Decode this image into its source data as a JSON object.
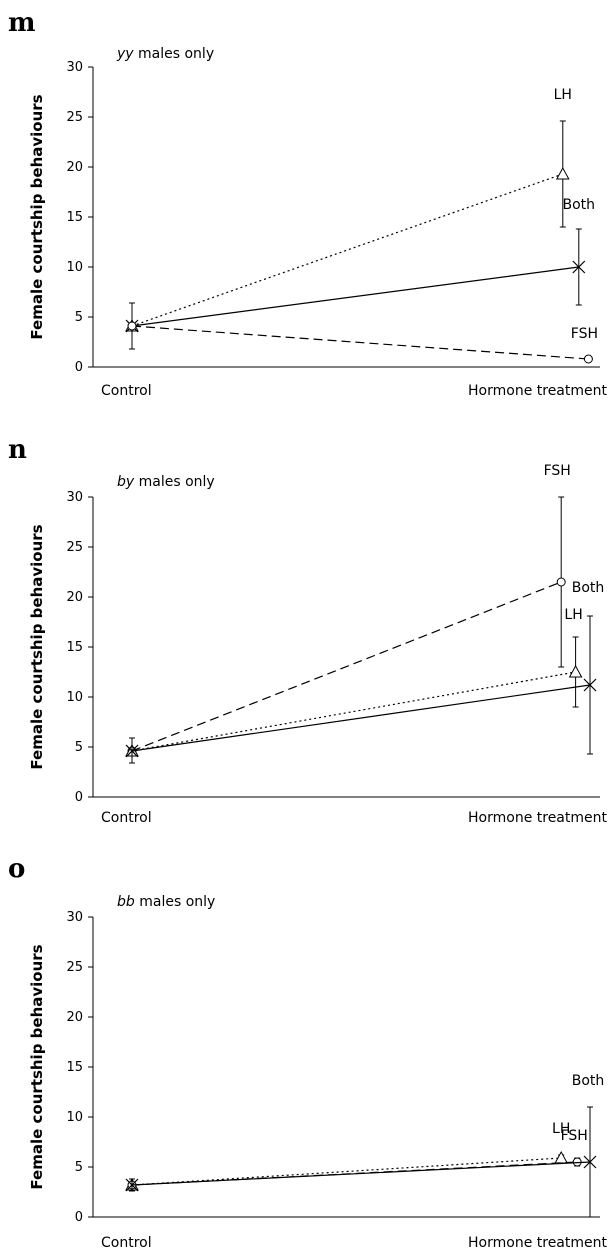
{
  "chart_data": [
    {
      "panel": "m",
      "type": "line",
      "subtitle_italic": "yy",
      "subtitle_rest": " males only",
      "ylabel": "Female courtship behaviours",
      "categories": [
        "Control",
        "Hormone treatment"
      ],
      "ylim": [
        0,
        30
      ],
      "yticks": [
        0,
        5,
        10,
        15,
        20,
        25,
        30
      ],
      "series": [
        {
          "name": "LH",
          "style": "dotted",
          "marker": "triangle",
          "x_end": 0.83,
          "values": [
            4.1,
            19.3
          ],
          "err_low": [
            1.8,
            14.0
          ],
          "err_high": [
            6.4,
            24.6
          ]
        },
        {
          "name": "Both",
          "style": "solid",
          "marker": "x",
          "x_end": 0.93,
          "values": [
            4.1,
            10.0
          ],
          "err_low": [
            1.8,
            6.2
          ],
          "err_high": [
            6.4,
            13.8
          ]
        },
        {
          "name": "FSH",
          "style": "dashed",
          "marker": "circle",
          "x_end": 0.99,
          "values": [
            4.1,
            0.8
          ],
          "err_low": [
            1.8,
            0.6
          ],
          "err_high": [
            6.4,
            1.0
          ]
        }
      ]
    },
    {
      "panel": "n",
      "type": "line",
      "subtitle_italic": "by",
      "subtitle_rest": " males only",
      "ylabel": "Female courtship behaviours",
      "categories": [
        "Control",
        "Hormone treatment"
      ],
      "ylim": [
        0,
        30
      ],
      "yticks": [
        0,
        5,
        10,
        15,
        20,
        25,
        30
      ],
      "series": [
        {
          "name": "FSH",
          "style": "dashed",
          "marker": "circle",
          "x_end": 0.82,
          "values": [
            4.6,
            21.5
          ],
          "err_low": [
            3.4,
            13.0
          ],
          "err_high": [
            5.9,
            30.0
          ]
        },
        {
          "name": "LH",
          "style": "dotted",
          "marker": "triangle",
          "x_end": 0.91,
          "values": [
            4.6,
            12.5
          ],
          "err_low": [
            3.4,
            9.0
          ],
          "err_high": [
            5.9,
            16.0
          ]
        },
        {
          "name": "Both",
          "style": "solid",
          "marker": "x",
          "x_end": 1.0,
          "values": [
            4.6,
            11.2
          ],
          "err_low": [
            3.4,
            4.3
          ],
          "err_high": [
            5.9,
            18.1
          ]
        }
      ]
    },
    {
      "panel": "o",
      "type": "line",
      "subtitle_italic": "bb",
      "subtitle_rest": " males only",
      "ylabel": "Female courtship behaviours",
      "categories": [
        "Control",
        "Hormone treatment"
      ],
      "ylim": [
        0,
        30
      ],
      "yticks": [
        0,
        5,
        10,
        15,
        20,
        25,
        30
      ],
      "series": [
        {
          "name": "LH",
          "style": "dotted",
          "marker": "triangle",
          "x_end": 0.82,
          "values": [
            3.2,
            5.9
          ],
          "err_low": [
            2.6,
            5.6
          ],
          "err_high": [
            3.8,
            6.2
          ]
        },
        {
          "name": "FSH",
          "style": "dashed",
          "marker": "circle",
          "x_end": 0.92,
          "values": [
            3.2,
            5.5
          ],
          "err_low": [
            2.6,
            5.1
          ],
          "err_high": [
            3.8,
            5.9
          ]
        },
        {
          "name": "Both",
          "style": "solid",
          "marker": "x",
          "x_end": 1.0,
          "values": [
            3.2,
            5.5
          ],
          "err_low": [
            2.6,
            0.0
          ],
          "err_high": [
            3.8,
            11.0
          ]
        }
      ]
    }
  ]
}
